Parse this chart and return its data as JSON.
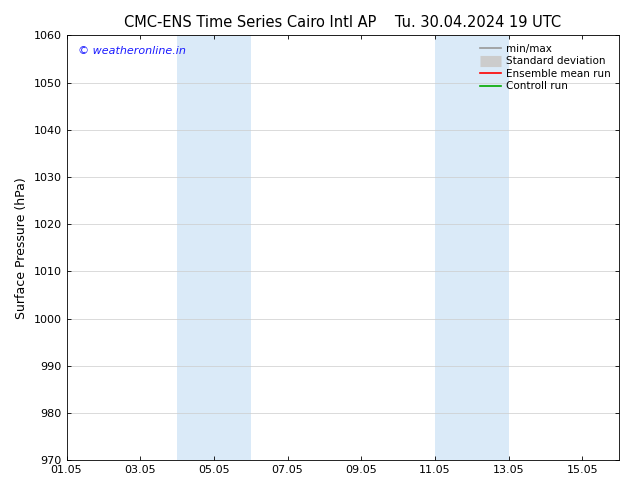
{
  "title_left": "CMC-ENS Time Series Cairo Intl AP",
  "title_right": "Tu. 30.04.2024 19 UTC",
  "ylabel": "Surface Pressure (hPa)",
  "xlim": [
    1.05,
    16.05
  ],
  "ylim": [
    970,
    1060
  ],
  "yticks": [
    970,
    980,
    990,
    1000,
    1010,
    1020,
    1030,
    1040,
    1050,
    1060
  ],
  "xticks": [
    1.05,
    3.05,
    5.05,
    7.05,
    9.05,
    11.05,
    13.05,
    15.05
  ],
  "xtick_labels": [
    "01.05",
    "03.05",
    "05.05",
    "07.05",
    "09.05",
    "11.05",
    "13.05",
    "15.05"
  ],
  "shaded_bands": [
    {
      "xmin": 4.05,
      "xmax": 6.05
    },
    {
      "xmin": 11.05,
      "xmax": 13.05
    }
  ],
  "shade_color": "#daeaf8",
  "watermark_text": "© weatheronline.in",
  "watermark_color": "#1a1aff",
  "legend_items": [
    {
      "label": "min/max",
      "color": "#999999",
      "lw": 1.2
    },
    {
      "label": "Standard deviation",
      "color": "#cccccc",
      "lw": 8
    },
    {
      "label": "Ensemble mean run",
      "color": "#ff0000",
      "lw": 1.2
    },
    {
      "label": "Controll run",
      "color": "#00aa00",
      "lw": 1.2
    }
  ],
  "bg_color": "#ffffff",
  "grid_color": "#cccccc",
  "title_fontsize": 10.5,
  "ylabel_fontsize": 9,
  "tick_fontsize": 8,
  "watermark_fontsize": 8,
  "legend_fontsize": 7.5
}
